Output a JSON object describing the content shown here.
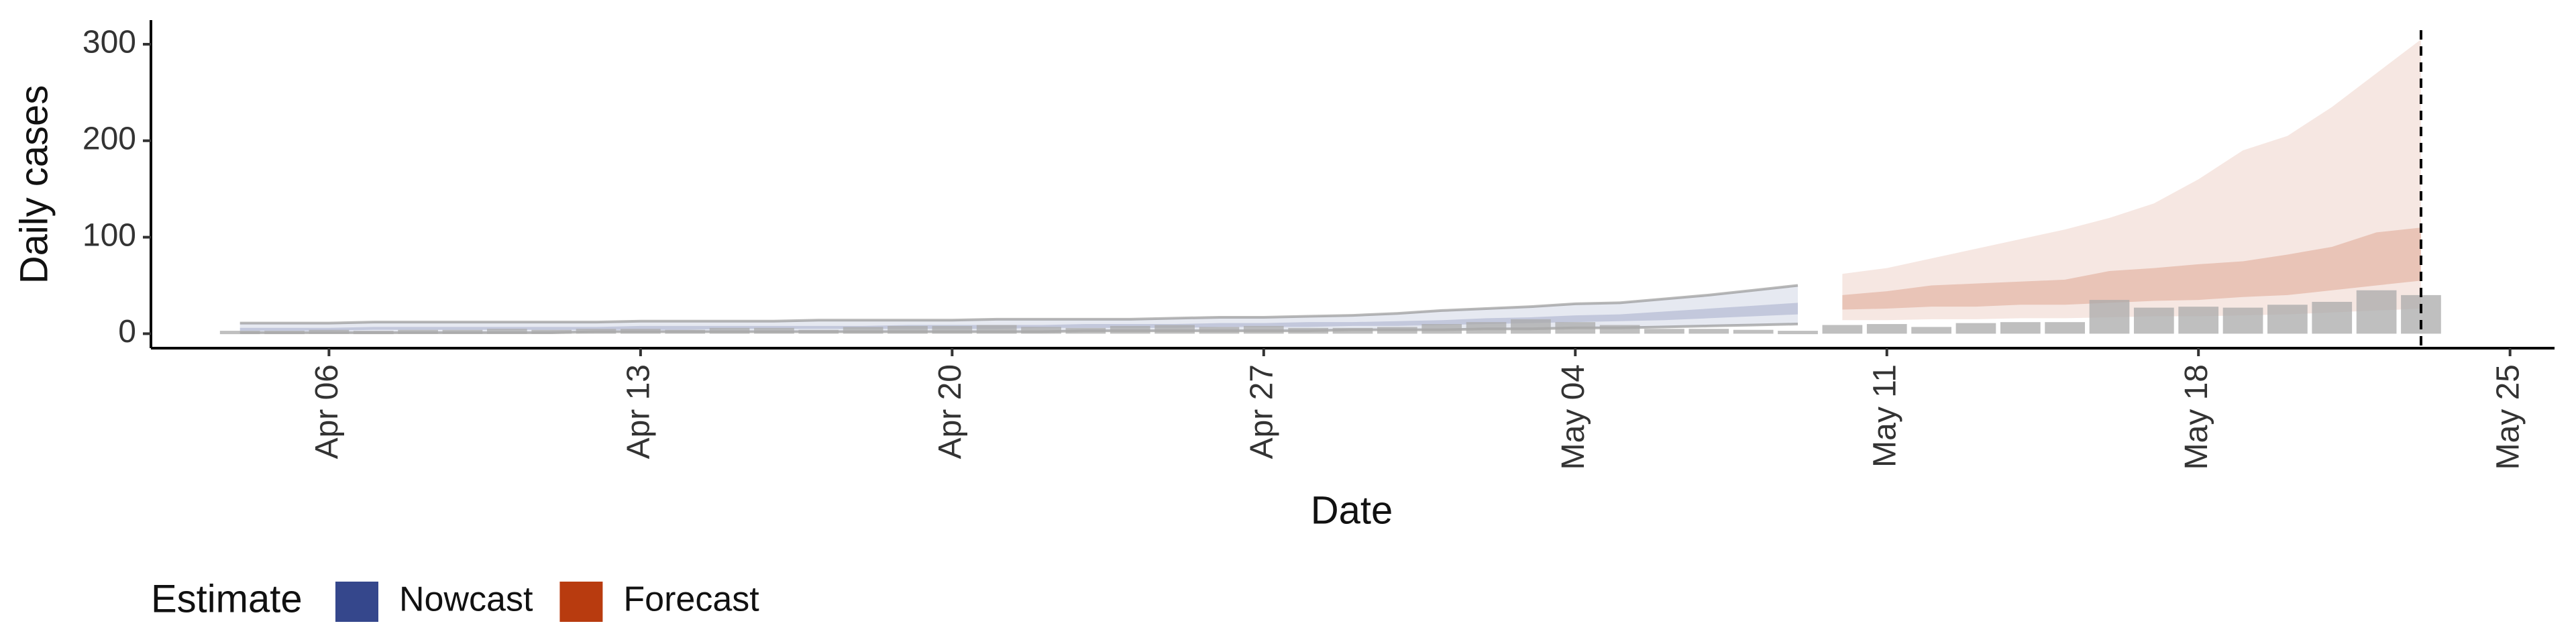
{
  "chart_data": {
    "type": "nowcast",
    "x_label": "Date",
    "y_label": "Daily cases",
    "legend_title": "Estimate",
    "xlim": [
      "Apr 02",
      "May 26"
    ],
    "xticks": [
      "Apr 06",
      "Apr 13",
      "Apr 20",
      "Apr 27",
      "May 04",
      "May 11",
      "May 18",
      "May 25"
    ],
    "ylim": [
      -15,
      325
    ],
    "yticks": [
      0,
      100,
      200,
      300
    ],
    "vline_x": "May 23",
    "bars": {
      "color": "#a9a9a9",
      "x": [
        "Apr 04",
        "Apr 05",
        "Apr 06",
        "Apr 07",
        "Apr 08",
        "Apr 09",
        "Apr 10",
        "Apr 11",
        "Apr 12",
        "Apr 13",
        "Apr 14",
        "Apr 15",
        "Apr 16",
        "Apr 17",
        "Apr 18",
        "Apr 19",
        "Apr 20",
        "Apr 21",
        "Apr 22",
        "Apr 23",
        "Apr 24",
        "Apr 25",
        "Apr 26",
        "Apr 27",
        "Apr 28",
        "Apr 29",
        "Apr 30",
        "May 01",
        "May 02",
        "May 03",
        "May 04",
        "May 05",
        "May 06",
        "May 07",
        "May 08",
        "May 09",
        "May 10",
        "May 11",
        "May 12",
        "May 13",
        "May 14",
        "May 15",
        "May 16",
        "May 17",
        "May 18",
        "May 19",
        "May 20",
        "May 21",
        "May 22",
        "May 23"
      ],
      "values": [
        3,
        3,
        4,
        3,
        4,
        4,
        5,
        4,
        5,
        5,
        4,
        6,
        6,
        4,
        7,
        8,
        8,
        9,
        7,
        6,
        8,
        9,
        7,
        8,
        6,
        6,
        7,
        10,
        12,
        15,
        12,
        9,
        5,
        5,
        4,
        3,
        9,
        10,
        7,
        11,
        12,
        12,
        35,
        27,
        28,
        27,
        30,
        33,
        45,
        40
      ]
    },
    "series": [
      {
        "name": "Nowcast",
        "color": "#35478c",
        "x": [
          "Apr 04",
          "Apr 05",
          "Apr 06",
          "Apr 07",
          "Apr 08",
          "Apr 09",
          "Apr 10",
          "Apr 11",
          "Apr 12",
          "Apr 13",
          "Apr 14",
          "Apr 15",
          "Apr 16",
          "Apr 17",
          "Apr 18",
          "Apr 19",
          "Apr 20",
          "Apr 21",
          "Apr 22",
          "Apr 23",
          "Apr 24",
          "Apr 25",
          "Apr 26",
          "Apr 27",
          "Apr 28",
          "Apr 29",
          "Apr 30",
          "May 01",
          "May 02",
          "May 03",
          "May 04",
          "May 05",
          "May 06",
          "May 07",
          "May 08",
          "May 09"
        ],
        "outer_upper": [
          11,
          11,
          11,
          12,
          12,
          12,
          12,
          12,
          12,
          13,
          13,
          13,
          13,
          14,
          14,
          14,
          14,
          15,
          15,
          15,
          15,
          16,
          17,
          17,
          18,
          19,
          21,
          24,
          26,
          28,
          31,
          32,
          36,
          40,
          45,
          50
        ],
        "outer_lower": [
          1,
          1,
          1,
          1,
          1,
          1,
          1,
          1,
          2,
          2,
          2,
          2,
          2,
          2,
          2,
          2,
          2,
          2,
          2,
          3,
          3,
          3,
          3,
          3,
          3,
          4,
          4,
          4,
          5,
          5,
          6,
          6,
          7,
          8,
          9,
          10
        ],
        "inner_upper": [
          6,
          6,
          6,
          7,
          7,
          7,
          7,
          7,
          7,
          8,
          8,
          8,
          8,
          8,
          8,
          9,
          9,
          9,
          9,
          10,
          10,
          10,
          11,
          11,
          12,
          12,
          13,
          14,
          16,
          17,
          19,
          20,
          23,
          26,
          29,
          32
        ],
        "inner_lower": [
          3,
          3,
          3,
          4,
          4,
          4,
          4,
          4,
          4,
          4,
          4,
          5,
          5,
          5,
          5,
          5,
          5,
          5,
          6,
          6,
          6,
          6,
          7,
          7,
          7,
          8,
          8,
          9,
          10,
          11,
          12,
          13,
          14,
          16,
          18,
          20
        ]
      },
      {
        "name": "Forecast",
        "color": "#b83b0f",
        "x": [
          "May 10",
          "May 11",
          "May 12",
          "May 13",
          "May 14",
          "May 15",
          "May 16",
          "May 17",
          "May 18",
          "May 19",
          "May 20",
          "May 21",
          "May 22",
          "May 23"
        ],
        "outer_upper": [
          62,
          68,
          78,
          88,
          98,
          108,
          120,
          135,
          160,
          190,
          205,
          235,
          270,
          305
        ],
        "outer_lower": [
          14,
          14,
          15,
          15,
          16,
          16,
          17,
          18,
          18,
          19,
          20,
          22,
          24,
          26
        ],
        "inner_upper": [
          40,
          44,
          50,
          52,
          54,
          56,
          65,
          68,
          72,
          75,
          82,
          90,
          105,
          110
        ],
        "inner_lower": [
          25,
          26,
          28,
          28,
          30,
          30,
          32,
          34,
          35,
          38,
          40,
          45,
          50,
          55
        ]
      }
    ]
  }
}
